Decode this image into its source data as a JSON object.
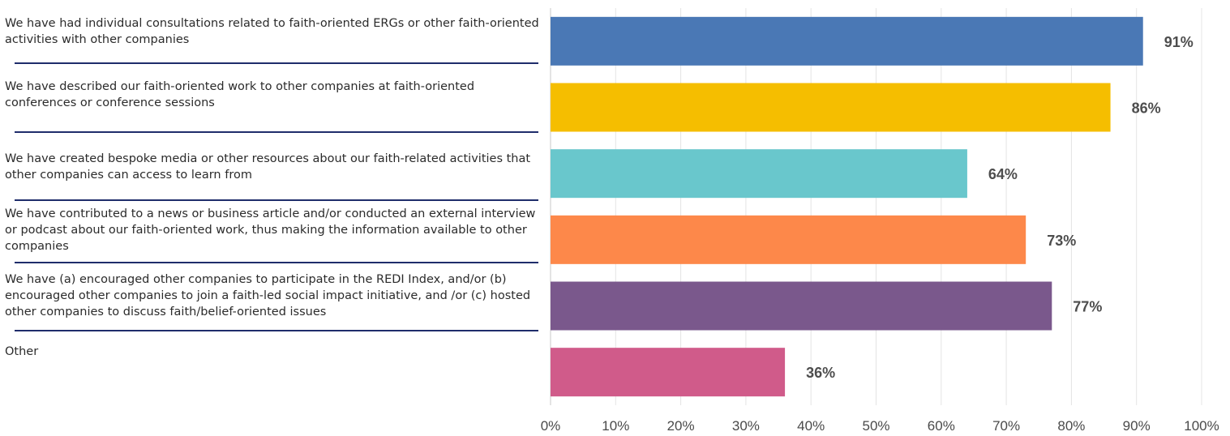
{
  "chart_data": {
    "type": "bar",
    "orientation": "horizontal",
    "categories": [
      "We have had individual consultations related to faith-oriented ERGs or other faith-oriented activities with other companies",
      "We have described our faith-oriented work to other companies at faith-oriented conferences or conference sessions",
      "We have created bespoke media or other resources about our faith-related activities that other companies can access to learn from",
      "We have contributed to a news or business article and/or conducted an external interview or podcast about our faith-oriented work, thus making the information available to other companies",
      "We have (a) encouraged other companies to participate in the REDI Index, and/or (b) encouraged other companies to join a faith-led social impact initiative, and /or (c) hosted other companies to discuss faith/belief-oriented issues",
      "Other"
    ],
    "values": [
      91,
      86,
      64,
      73,
      77,
      36
    ],
    "value_labels": [
      "91%",
      "86%",
      "64%",
      "73%",
      "77%",
      "36%"
    ],
    "colors": [
      "#4a78b5",
      "#f5be00",
      "#69c7cc",
      "#fd884a",
      "#7a588c",
      "#d05b8a"
    ],
    "xlim": [
      0,
      100
    ],
    "xticks": [
      "0%",
      "10%",
      "20%",
      "30%",
      "40%",
      "50%",
      "60%",
      "70%",
      "80%",
      "90%",
      "100%"
    ],
    "grid": "vertical",
    "title": "",
    "xlabel": "",
    "ylabel": ""
  }
}
